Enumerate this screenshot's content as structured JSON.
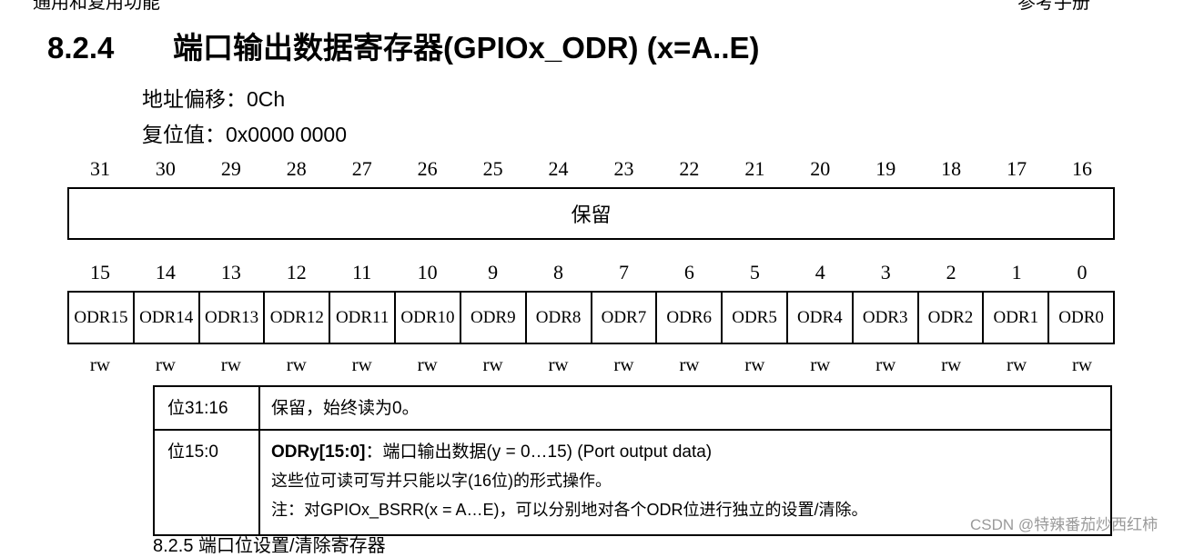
{
  "page": {
    "top_left_fragment": "通用和复用功能",
    "top_right_fragment": "参考手册"
  },
  "section": {
    "number": "8.2.4",
    "title": "端口输出数据寄存器(GPIOx_ODR) (x=A..E)"
  },
  "register": {
    "offset_text": "地址偏移：0Ch",
    "reset_text": "复位值：0x0000 0000",
    "high_bits": [
      "31",
      "30",
      "29",
      "28",
      "27",
      "26",
      "25",
      "24",
      "23",
      "22",
      "21",
      "20",
      "19",
      "18",
      "17",
      "16"
    ],
    "reserved_label": "保留",
    "low_bits": [
      "15",
      "14",
      "13",
      "12",
      "11",
      "10",
      "9",
      "8",
      "7",
      "6",
      "5",
      "4",
      "3",
      "2",
      "1",
      "0"
    ],
    "fields": [
      "ODR15",
      "ODR14",
      "ODR13",
      "ODR12",
      "ODR11",
      "ODR10",
      "ODR9",
      "ODR8",
      "ODR7",
      "ODR6",
      "ODR5",
      "ODR4",
      "ODR3",
      "ODR2",
      "ODR1",
      "ODR0"
    ],
    "access": [
      "rw",
      "rw",
      "rw",
      "rw",
      "rw",
      "rw",
      "rw",
      "rw",
      "rw",
      "rw",
      "rw",
      "rw",
      "rw",
      "rw",
      "rw",
      "rw"
    ]
  },
  "description": [
    {
      "bits": "位31:16",
      "text": "保留，始终读为0。"
    },
    {
      "bits": "位15:0",
      "heading": "ODRy[15:0]",
      "heading_rest": "：端口输出数据(y = 0…15) (Port output data)",
      "line2": "这些位可读可写并只能以字(16位)的形式操作。",
      "line3": "注：对GPIOx_BSRR(x = A…E)，可以分别地对各个ODR位进行独立的设置/清除。"
    }
  ],
  "footer": {
    "watermark": "CSDN @特辣番茄炒西红柿",
    "bottom_fragment": "8.2.5     端口位设置/清除寄存器"
  }
}
